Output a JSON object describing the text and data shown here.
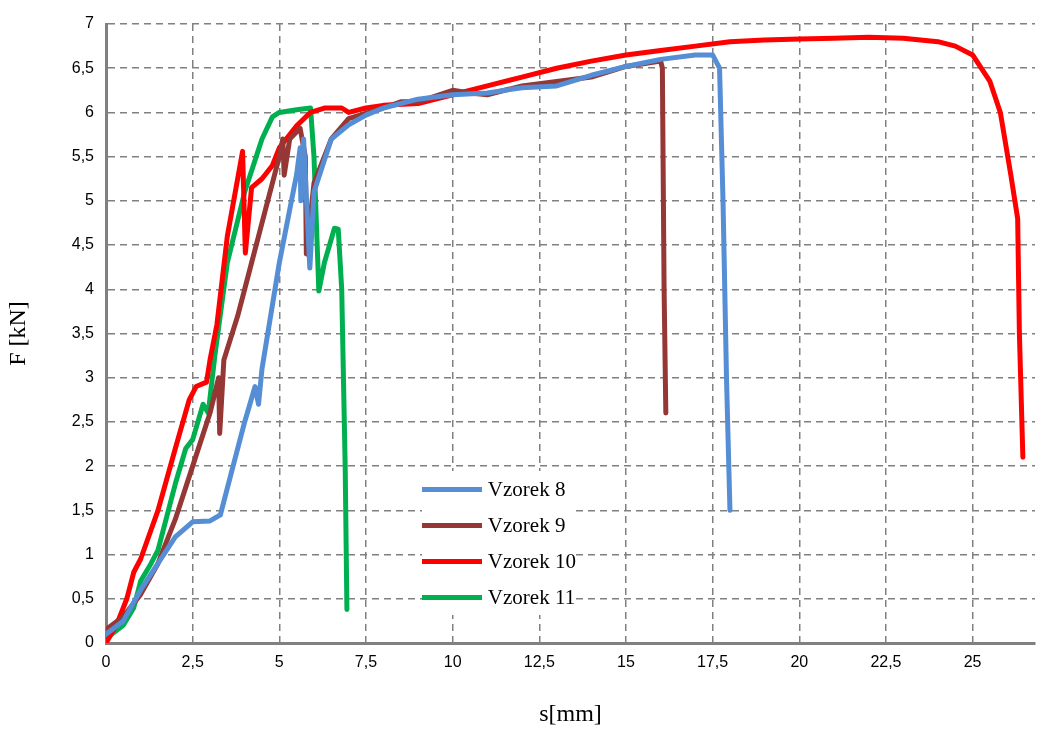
{
  "chart_data": {
    "type": "line",
    "xlabel": "s[mm]",
    "ylabel": "F [kN]",
    "xlim": [
      0,
      26.8
    ],
    "ylim": [
      0,
      7
    ],
    "xticks": [
      0,
      {
        "value": 2.5,
        "label": "2,5"
      },
      5,
      {
        "value": 7.5,
        "label": "7,5"
      },
      10,
      {
        "value": 12.5,
        "label": "12,5"
      },
      15,
      {
        "value": 17.5,
        "label": "17,5"
      },
      20,
      {
        "value": 22.5,
        "label": "22,5"
      },
      25
    ],
    "yticks": [
      0,
      {
        "value": 0.5,
        "label": "0,5"
      },
      1,
      {
        "value": 1.5,
        "label": "1,5"
      },
      2,
      {
        "value": 2.5,
        "label": "2,5"
      },
      3,
      {
        "value": 3.5,
        "label": "3,5"
      },
      4,
      {
        "value": 4.5,
        "label": "4,5"
      },
      5,
      {
        "value": 5.5,
        "label": "5,5"
      },
      6,
      {
        "value": 6.5,
        "label": "6,5"
      },
      7
    ],
    "grid": true,
    "legend": "bottom",
    "marker": "none",
    "line_style": "solid",
    "series": [
      {
        "name": "Vzorek 8",
        "color": "#558ed5",
        "x": [
          0,
          0.5,
          1,
          1.5,
          2,
          2.5,
          3,
          3.3,
          3.6,
          4,
          4.3,
          4.4,
          4.5,
          5,
          5.5,
          5.6,
          5.62,
          5.7,
          5.88,
          6,
          6.5,
          7,
          7.5,
          8,
          9,
          10,
          11,
          12,
          13,
          14,
          15,
          16,
          17,
          17.5,
          17.7,
          17.8,
          17.9,
          18
        ],
        "values": [
          0.1,
          0.25,
          0.6,
          0.9,
          1.2,
          1.37,
          1.38,
          1.45,
          1.9,
          2.5,
          2.9,
          2.7,
          3.1,
          4.3,
          5.3,
          5.6,
          5.0,
          5.7,
          4.24,
          5.1,
          5.7,
          5.86,
          5.97,
          6.05,
          6.15,
          6.2,
          6.22,
          6.28,
          6.3,
          6.42,
          6.52,
          6.6,
          6.65,
          6.65,
          6.5,
          5.0,
          3.0,
          1.5
        ]
      },
      {
        "name": "Vzorek 9",
        "color": "#953735",
        "x": [
          0,
          0.5,
          1,
          1.5,
          2,
          2.5,
          3,
          3.25,
          3.28,
          3.4,
          3.8,
          4.2,
          4.6,
          5,
          5.1,
          5.14,
          5.3,
          5.6,
          5.75,
          5.78,
          6,
          6.5,
          7,
          8,
          8.5,
          9,
          10,
          10.5,
          11,
          12,
          13,
          14,
          15,
          16,
          16.05,
          16.1,
          16.15
        ],
        "values": [
          0.15,
          0.3,
          0.55,
          0.9,
          1.4,
          2.0,
          2.6,
          3.0,
          2.37,
          3.2,
          3.7,
          4.3,
          4.9,
          5.5,
          5.7,
          5.29,
          5.7,
          5.82,
          5.5,
          4.4,
          5.2,
          5.7,
          5.93,
          6.05,
          6.12,
          6.12,
          6.25,
          6.22,
          6.2,
          6.3,
          6.35,
          6.4,
          6.52,
          6.58,
          6.5,
          4.0,
          2.6
        ]
      },
      {
        "name": "Vzorek 10",
        "color": "#ff0000",
        "x": [
          0,
          0.3,
          0.6,
          0.8,
          1,
          1.5,
          2,
          2.4,
          2.6,
          2.9,
          3.0,
          3.2,
          3.5,
          3.94,
          4.02,
          4.2,
          4.5,
          4.8,
          5,
          5.5,
          5.9,
          6.3,
          6.8,
          7,
          7.5,
          8,
          9,
          10,
          11,
          12,
          13,
          14,
          15,
          16,
          17,
          18,
          19,
          20,
          21,
          22,
          23,
          24,
          24.5,
          25,
          25.5,
          25.8,
          26.1,
          26.3,
          26.35,
          26.45
        ],
        "values": [
          0,
          0.2,
          0.5,
          0.8,
          0.95,
          1.5,
          2.2,
          2.75,
          2.9,
          2.95,
          3.2,
          3.6,
          4.6,
          5.56,
          4.41,
          5.15,
          5.25,
          5.4,
          5.6,
          5.85,
          6.0,
          6.05,
          6.05,
          6.0,
          6.05,
          6.08,
          6.1,
          6.2,
          6.3,
          6.4,
          6.5,
          6.58,
          6.65,
          6.7,
          6.75,
          6.8,
          6.82,
          6.83,
          6.84,
          6.85,
          6.84,
          6.8,
          6.75,
          6.65,
          6.35,
          6.0,
          5.3,
          4.8,
          3.5,
          2.1
        ]
      },
      {
        "name": "Vzorek 11",
        "color": "#00b050",
        "x": [
          0,
          0.5,
          0.8,
          1,
          1.3,
          1.5,
          2,
          2.3,
          2.5,
          2.8,
          2.95,
          3.14,
          3.5,
          4,
          4.5,
          4.8,
          5,
          5.5,
          5.9,
          6,
          6.14,
          6.3,
          6.59,
          6.7,
          6.8,
          6.9,
          6.95
        ],
        "values": [
          0.05,
          0.2,
          0.4,
          0.7,
          0.9,
          1.05,
          1.8,
          2.2,
          2.3,
          2.7,
          2.6,
          3.25,
          4.3,
          5.1,
          5.7,
          5.95,
          6.0,
          6.03,
          6.05,
          5.5,
          3.98,
          4.3,
          4.69,
          4.68,
          4.0,
          2.0,
          0.38
        ]
      }
    ]
  }
}
